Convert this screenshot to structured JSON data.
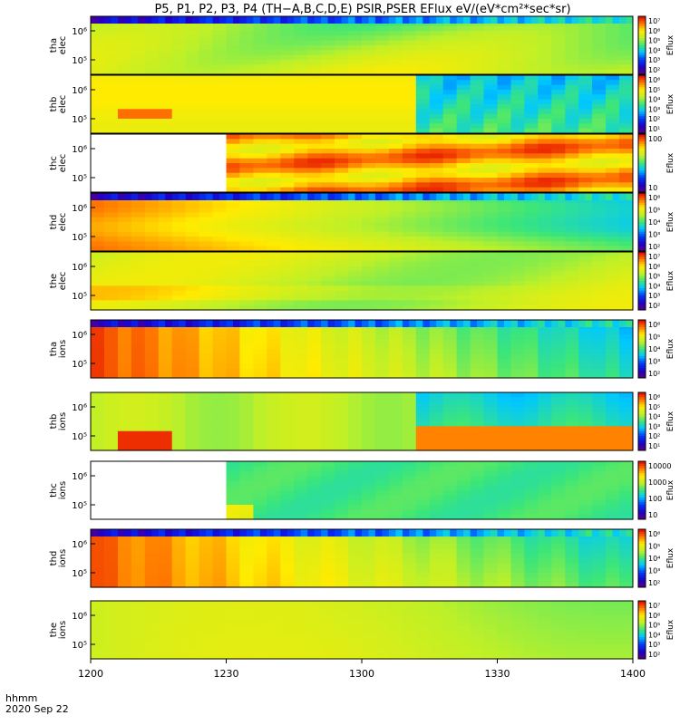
{
  "title": "P5, P1, P2, P3, P4 (TH−A,B,C,D,E) PSIR,PSER EFlux eV/(eV*cm²*sec*sr)",
  "footer": {
    "label": "hhmm",
    "date": "2020 Sep 22"
  },
  "chart_data": {
    "type": "heatmap",
    "title": "P5, P1, P2, P3, P4 (TH−A,B,C,D,E) PSIR,PSER EFlux eV/(eV*cm²*sec*sr)",
    "x": {
      "label": "hhmm",
      "ticks": [
        "1200",
        "1230",
        "1300",
        "1330",
        "1400"
      ],
      "range": [
        "12:00",
        "14:00"
      ]
    },
    "colorbar_label": "Eflux",
    "panels": [
      {
        "id": "tha_elec",
        "label": [
          "tha",
          "elec"
        ],
        "y_ticks": [
          "10⁶",
          "10⁵"
        ],
        "cbar_ticks": [
          "10⁷",
          "10⁶",
          "10⁵",
          "10⁴",
          "10³",
          "10²"
        ],
        "cbar_range": [
          100,
          10000000
        ],
        "style": "elec_smooth",
        "data_start_fraction": 0.0,
        "topband": true
      },
      {
        "id": "thb_elec",
        "label": [
          "thb",
          "elec"
        ],
        "y_ticks": [
          "10⁶",
          "10⁵"
        ],
        "cbar_ticks": [
          "10⁶",
          "10⁵",
          "10⁴",
          "10³",
          "10²",
          "10¹"
        ],
        "cbar_range": [
          10,
          1000000
        ],
        "style": "thb_elec",
        "data_start_fraction": 0.0,
        "topband": false
      },
      {
        "id": "thc_elec",
        "label": [
          "thc",
          "elec"
        ],
        "y_ticks": [
          "10⁶",
          "10⁵"
        ],
        "cbar_ticks": [
          "100",
          "10"
        ],
        "cbar_range": [
          5,
          500
        ],
        "style": "thc_elec",
        "data_start_fraction": 0.25,
        "topband": false
      },
      {
        "id": "thd_elec",
        "label": [
          "thd",
          "elec"
        ],
        "y_ticks": [
          "10⁶",
          "10⁵"
        ],
        "cbar_ticks": [
          "10⁶",
          "10⁵",
          "10⁴",
          "10³",
          "10²"
        ],
        "cbar_range": [
          100,
          1000000
        ],
        "style": "thd_elec",
        "data_start_fraction": 0.0,
        "topband": true
      },
      {
        "id": "the_elec",
        "label": [
          "the",
          "elec"
        ],
        "y_ticks": [
          "10⁶",
          "10⁵"
        ],
        "cbar_ticks": [
          "10⁷",
          "10⁶",
          "10⁵",
          "10⁴",
          "10³",
          "10²"
        ],
        "cbar_range": [
          100,
          10000000
        ],
        "style": "the_elec",
        "data_start_fraction": 0.0,
        "topband": false
      },
      {
        "id": "tha_ions",
        "label": [
          "tha",
          "ions"
        ],
        "y_ticks": [
          "10⁶",
          "10⁵"
        ],
        "cbar_ticks": [
          "10⁶",
          "10⁵",
          "10⁴",
          "10³",
          "10²"
        ],
        "cbar_range": [
          100,
          1000000
        ],
        "style": "tha_ions",
        "data_start_fraction": 0.0,
        "topband": true
      },
      {
        "id": "thb_ions",
        "label": [
          "thb",
          "ions"
        ],
        "y_ticks": [
          "10⁶",
          "10⁵"
        ],
        "cbar_ticks": [
          "10⁶",
          "10⁵",
          "10⁴",
          "10³",
          "10²",
          "10¹"
        ],
        "cbar_range": [
          10,
          1000000
        ],
        "style": "thb_ions",
        "data_start_fraction": 0.0,
        "topband": false
      },
      {
        "id": "thc_ions",
        "label": [
          "thc",
          "ions"
        ],
        "y_ticks": [
          "10⁶",
          "10⁵"
        ],
        "cbar_ticks": [
          "10000",
          "1000",
          "100",
          "10"
        ],
        "cbar_range": [
          5,
          50000
        ],
        "style": "thc_ions",
        "data_start_fraction": 0.25,
        "topband": false
      },
      {
        "id": "thd_ions",
        "label": [
          "thd",
          "ions"
        ],
        "y_ticks": [
          "10⁶",
          "10⁵"
        ],
        "cbar_ticks": [
          "10⁶",
          "10⁵",
          "10⁴",
          "10³",
          "10²"
        ],
        "cbar_range": [
          100,
          1000000
        ],
        "style": "thd_ions",
        "data_start_fraction": 0.0,
        "topband": true
      },
      {
        "id": "the_ions",
        "label": [
          "the",
          "ions"
        ],
        "y_ticks": [
          "10⁶",
          "10⁵"
        ],
        "cbar_ticks": [
          "10⁷",
          "10⁶",
          "10⁵",
          "10⁴",
          "10³",
          "10²"
        ],
        "cbar_range": [
          100,
          10000000
        ],
        "style": "the_ions",
        "data_start_fraction": 0.0,
        "topband": false
      }
    ]
  }
}
